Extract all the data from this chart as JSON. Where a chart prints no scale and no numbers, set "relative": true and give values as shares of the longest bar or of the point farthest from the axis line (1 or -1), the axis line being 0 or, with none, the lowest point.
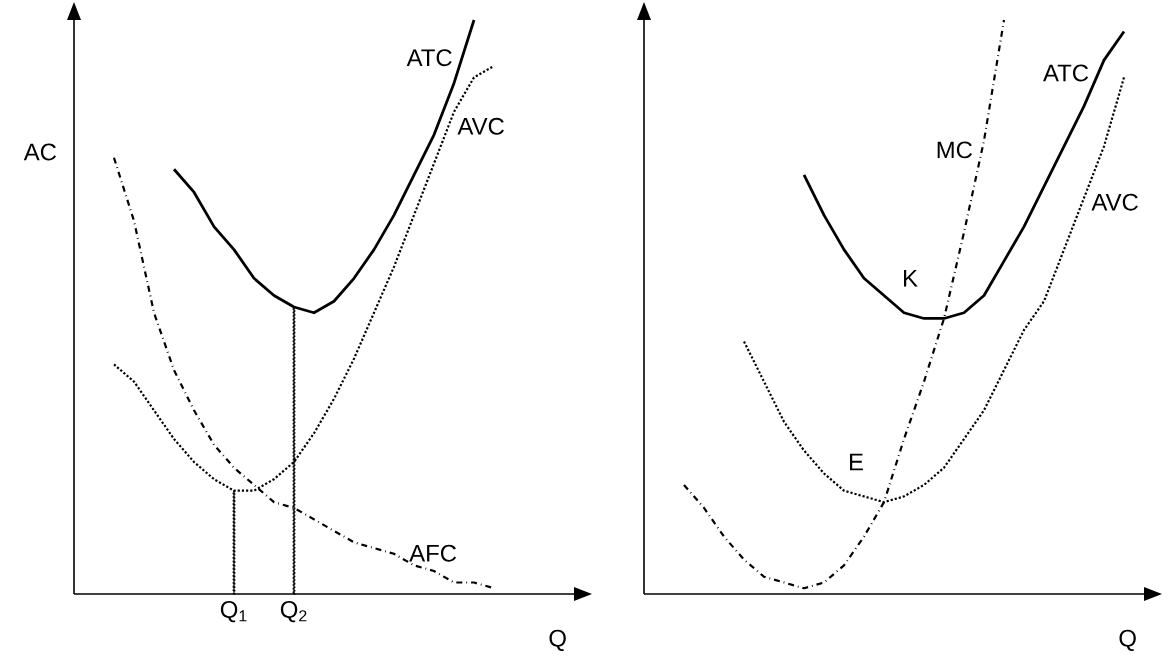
{
  "chart_data": [
    {
      "type": "line",
      "relative": true,
      "ylabel": "AC",
      "xlabel": "Q",
      "categories": [
        null,
        null,
        null,
        null,
        null,
        null,
        null,
        null,
        "Q$_{1}$",
        null,
        null,
        "Q$_{2}$",
        null,
        null,
        null,
        null,
        null,
        null,
        null,
        null,
        null,
        null,
        null,
        null,
        null,
        null
      ],
      "series": [
        {
          "name": "ATC",
          "color": "#000000",
          "line_style": "solid",
          "values": [
            null,
            null,
            null,
            null,
            null,
            0.74,
            0.7,
            0.64,
            0.6,
            0.55,
            0.52,
            0.5,
            0.49,
            0.51,
            0.55,
            0.6,
            0.66,
            0.73,
            0.8,
            0.89,
            1.0,
            null,
            null,
            null,
            null,
            null
          ]
        },
        {
          "name": "AVC",
          "color": "#000000",
          "line_style": "dotted",
          "values": [
            null,
            null,
            0.4,
            0.37,
            0.32,
            0.27,
            0.23,
            0.2,
            0.18,
            0.18,
            0.2,
            0.23,
            0.28,
            0.34,
            0.41,
            0.49,
            0.57,
            0.66,
            0.75,
            0.84,
            0.9,
            0.92,
            null,
            null,
            null,
            null
          ]
        },
        {
          "name": "AFC",
          "color": "#000000",
          "line_style": "dashdot",
          "values": [
            null,
            null,
            0.76,
            0.65,
            0.49,
            0.39,
            0.32,
            0.26,
            0.22,
            0.19,
            0.16,
            0.15,
            0.13,
            0.11,
            0.09,
            0.08,
            0.07,
            0.05,
            0.04,
            0.02,
            0.02,
            0.01,
            null,
            null,
            null,
            null
          ]
        },
        {
          "type": "bar",
          "color": "#000000",
          "line_style": "dotted",
          "values": [
            null,
            null,
            null,
            null,
            null,
            null,
            null,
            null,
            0.18,
            null,
            null,
            0.5,
            null,
            null,
            null,
            null,
            null,
            null,
            null,
            null,
            null,
            null,
            null,
            null,
            null,
            null
          ]
        }
      ]
    },
    {
      "type": "line",
      "relative": true,
      "xlabel": "Q",
      "categories": [
        null,
        null,
        null,
        null,
        null,
        null,
        null,
        null,
        null,
        null,
        null,
        null,
        null,
        null,
        null,
        null,
        null,
        null,
        null,
        null,
        null,
        null,
        null,
        null,
        null,
        null
      ],
      "annotations": [
        "K",
        "E"
      ],
      "series": [
        {
          "name": "MC",
          "color": "#000000",
          "line_style": "dashdot",
          "values": [
            null,
            null,
            0.19,
            0.15,
            0.1,
            0.06,
            0.03,
            0.02,
            0.01,
            0.02,
            0.05,
            0.1,
            0.16,
            0.27,
            0.37,
            0.48,
            0.63,
            0.79,
            1.0,
            null,
            null,
            null,
            null,
            null,
            null,
            null
          ]
        },
        {
          "name": "ATC",
          "color": "#000000",
          "line_style": "solid",
          "values": [
            null,
            null,
            null,
            null,
            null,
            null,
            null,
            null,
            0.73,
            0.66,
            0.6,
            0.55,
            0.52,
            0.49,
            0.48,
            0.48,
            0.49,
            0.52,
            0.58,
            0.64,
            0.71,
            0.78,
            0.85,
            0.93,
            0.98,
            null
          ]
        },
        {
          "name": "AVC",
          "color": "#000000",
          "line_style": "dotted",
          "values": [
            null,
            null,
            null,
            null,
            null,
            0.44,
            0.37,
            0.3,
            0.25,
            0.21,
            0.18,
            0.17,
            0.16,
            0.17,
            0.19,
            0.22,
            0.27,
            0.32,
            0.39,
            0.46,
            0.51,
            0.6,
            0.69,
            0.78,
            0.9,
            null
          ]
        }
      ]
    }
  ]
}
